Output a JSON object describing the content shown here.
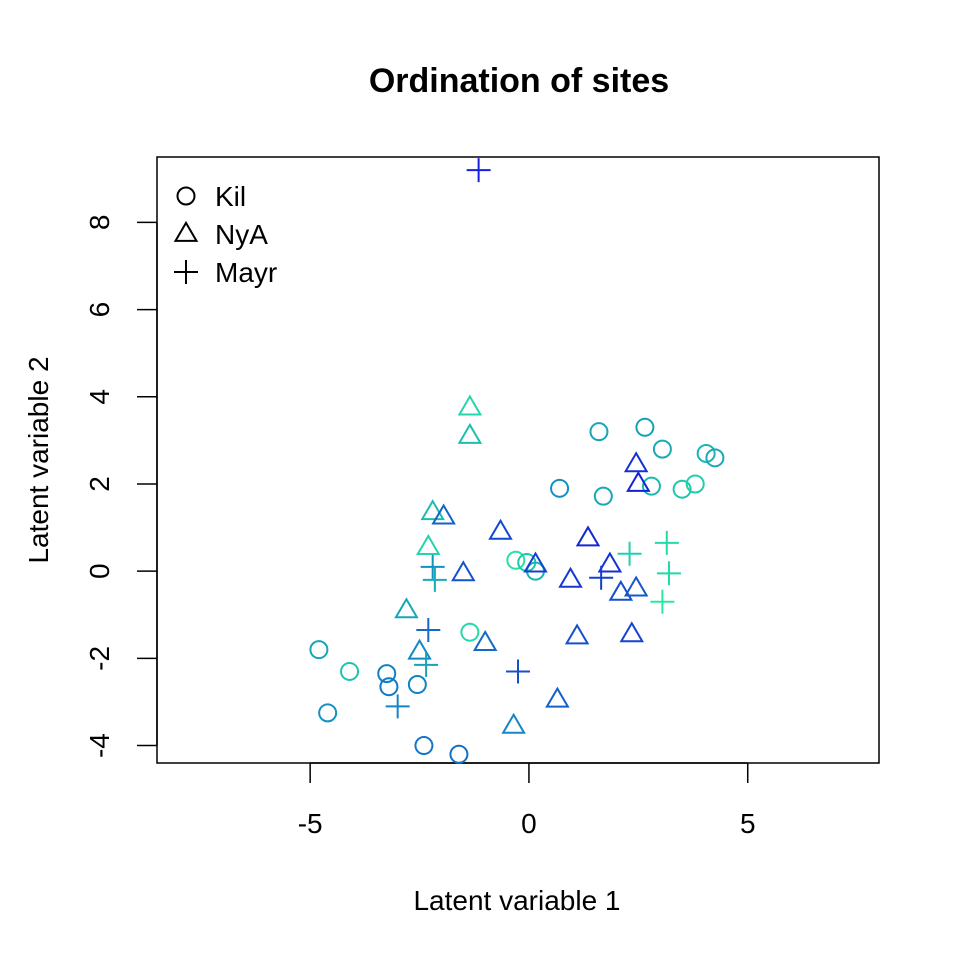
{
  "chart_data": {
    "type": "scatter",
    "title": "Ordination of sites",
    "xlabel": "Latent variable 1",
    "ylabel": "Latent variable 2",
    "xlim": [
      -8.5,
      8.0
    ],
    "ylim": [
      -4.4,
      9.5
    ],
    "xticks": [
      -5,
      0,
      5
    ],
    "yticks": [
      -4,
      -2,
      0,
      2,
      4,
      6,
      8
    ],
    "grid": false,
    "legend_position": "top-left",
    "legend": [
      {
        "name": "Kil",
        "shape": "circle-icon"
      },
      {
        "name": "NyA",
        "shape": "triangle-icon"
      },
      {
        "name": "Mayr",
        "shape": "plus-icon"
      }
    ],
    "series": [
      {
        "name": "Kil",
        "shape": "circle",
        "points": [
          {
            "x": -4.8,
            "y": -1.8,
            "color": "#16a6b6"
          },
          {
            "x": -4.1,
            "y": -2.3,
            "color": "#1bc6ad"
          },
          {
            "x": -4.6,
            "y": -3.25,
            "color": "#1492c0"
          },
          {
            "x": -3.25,
            "y": -2.35,
            "color": "#1082c4"
          },
          {
            "x": -3.2,
            "y": -2.65,
            "color": "#1278c6"
          },
          {
            "x": -2.55,
            "y": -2.6,
            "color": "#1282c6"
          },
          {
            "x": -2.4,
            "y": -4.0,
            "color": "#1276c8"
          },
          {
            "x": -1.6,
            "y": -4.2,
            "color": "#1070c6"
          },
          {
            "x": -1.35,
            "y": -1.4,
            "color": "#24d8a8"
          },
          {
            "x": -0.3,
            "y": 0.25,
            "color": "#28e0a6"
          },
          {
            "x": -0.05,
            "y": 0.2,
            "color": "#20c6ac"
          },
          {
            "x": 0.15,
            "y": 0.0,
            "color": "#1ab4b4"
          },
          {
            "x": 0.7,
            "y": 1.9,
            "color": "#1490c0"
          },
          {
            "x": 1.6,
            "y": 3.2,
            "color": "#18a4b6"
          },
          {
            "x": 1.7,
            "y": 1.72,
            "color": "#16a6b6"
          },
          {
            "x": 2.65,
            "y": 3.3,
            "color": "#16a0b8"
          },
          {
            "x": 2.8,
            "y": 1.95,
            "color": "#1ab8b2"
          },
          {
            "x": 3.05,
            "y": 2.8,
            "color": "#1aaab6"
          },
          {
            "x": 3.5,
            "y": 1.88,
            "color": "#20c6ac"
          },
          {
            "x": 3.8,
            "y": 2.0,
            "color": "#22ceaa"
          },
          {
            "x": 4.05,
            "y": 2.7,
            "color": "#1ab4b4"
          },
          {
            "x": 4.25,
            "y": 2.6,
            "color": "#1aa8b6"
          }
        ]
      },
      {
        "name": "NyA",
        "shape": "triangle",
        "points": [
          {
            "x": -1.35,
            "y": 3.75,
            "color": "#24d6aa"
          },
          {
            "x": -1.35,
            "y": 3.1,
            "color": "#1ebeae"
          },
          {
            "x": -2.2,
            "y": 1.35,
            "color": "#1ebcae"
          },
          {
            "x": -1.95,
            "y": 1.25,
            "color": "#1462c8"
          },
          {
            "x": -2.3,
            "y": 0.55,
            "color": "#24d4aa"
          },
          {
            "x": -2.8,
            "y": -0.9,
            "color": "#18a6b6"
          },
          {
            "x": -2.5,
            "y": -1.85,
            "color": "#1488c4"
          },
          {
            "x": -1.5,
            "y": -0.05,
            "color": "#1452ce"
          },
          {
            "x": -1.0,
            "y": -1.65,
            "color": "#1468c8"
          },
          {
            "x": -0.65,
            "y": 0.9,
            "color": "#1448ce"
          },
          {
            "x": 0.15,
            "y": 0.15,
            "color": "#1440d2"
          },
          {
            "x": -0.35,
            "y": -3.55,
            "color": "#1486c4"
          },
          {
            "x": 0.65,
            "y": -2.95,
            "color": "#1460ca"
          },
          {
            "x": 0.95,
            "y": -0.2,
            "color": "#1438d2"
          },
          {
            "x": 1.1,
            "y": -1.5,
            "color": "#1450ce"
          },
          {
            "x": 1.35,
            "y": 0.75,
            "color": "#1428d6"
          },
          {
            "x": 1.85,
            "y": 0.15,
            "color": "#1430d4"
          },
          {
            "x": 2.1,
            "y": -0.5,
            "color": "#1450ce"
          },
          {
            "x": 2.35,
            "y": -1.45,
            "color": "#1444d0"
          },
          {
            "x": 2.45,
            "y": -0.4,
            "color": "#1458cc"
          },
          {
            "x": 2.45,
            "y": 2.45,
            "color": "#1430d4"
          },
          {
            "x": 2.5,
            "y": 2.0,
            "color": "#1420d8"
          }
        ]
      },
      {
        "name": "Mayr",
        "shape": "plus",
        "points": [
          {
            "x": -1.15,
            "y": 9.2,
            "color": "#1820e0"
          },
          {
            "x": -2.2,
            "y": 0.1,
            "color": "#1490c2"
          },
          {
            "x": -2.15,
            "y": -0.2,
            "color": "#18aab6"
          },
          {
            "x": -2.3,
            "y": -1.35,
            "color": "#1468c8"
          },
          {
            "x": -2.35,
            "y": -2.15,
            "color": "#18a2b8"
          },
          {
            "x": -3.0,
            "y": -3.1,
            "color": "#1484c4"
          },
          {
            "x": -0.25,
            "y": -2.3,
            "color": "#1450ce"
          },
          {
            "x": 1.65,
            "y": -0.15,
            "color": "#1440d0"
          },
          {
            "x": 2.3,
            "y": 0.4,
            "color": "#20d0ac"
          },
          {
            "x": 3.05,
            "y": -0.7,
            "color": "#28e8a0"
          },
          {
            "x": 3.15,
            "y": 0.65,
            "color": "#20dcaa"
          },
          {
            "x": 3.2,
            "y": -0.05,
            "color": "#20d8a8"
          }
        ]
      }
    ]
  }
}
